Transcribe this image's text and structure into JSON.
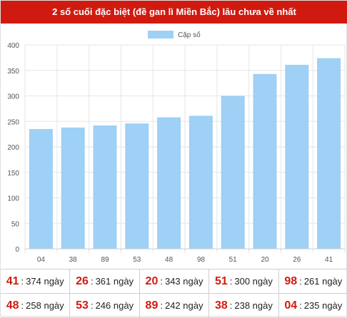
{
  "header": {
    "title": "2 số cuối đặc biệt (đề gan lì Miền Bắc) lâu chưa về nhất"
  },
  "colors": {
    "header_bg": "#d11a0f",
    "bar": "#9fd0f5",
    "number": "#d11a0f"
  },
  "chart_data": {
    "type": "bar",
    "title": "",
    "xlabel": "",
    "ylabel": "",
    "categories": [
      "04",
      "38",
      "89",
      "53",
      "48",
      "98",
      "51",
      "20",
      "26",
      "41"
    ],
    "series": [
      {
        "name": "Cặp số",
        "values": [
          235,
          238,
          242,
          246,
          258,
          261,
          300,
          343,
          361,
          374
        ]
      }
    ],
    "ylim": [
      0,
      400
    ],
    "yticks": [
      0,
      50,
      100,
      150,
      200,
      250,
      300,
      350,
      400
    ],
    "grid": true,
    "legend": "top"
  },
  "stats": {
    "unit_sep": ":",
    "rows": [
      [
        {
          "num": "41",
          "text": "374 ngày"
        },
        {
          "num": "26",
          "text": "361 ngày"
        },
        {
          "num": "20",
          "text": "343 ngày"
        },
        {
          "num": "51",
          "text": "300 ngày"
        },
        {
          "num": "98",
          "text": "261 ngày"
        }
      ],
      [
        {
          "num": "48",
          "text": "258 ngày"
        },
        {
          "num": "53",
          "text": "246 ngày"
        },
        {
          "num": "89",
          "text": "242 ngày"
        },
        {
          "num": "38",
          "text": "238 ngày"
        },
        {
          "num": "04",
          "text": "235 ngày"
        }
      ]
    ]
  }
}
